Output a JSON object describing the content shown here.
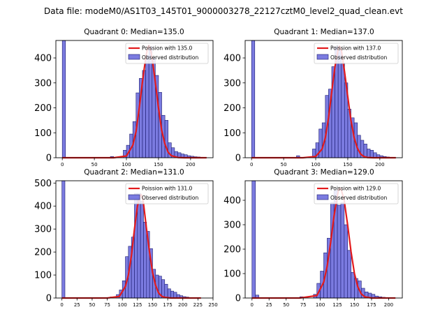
{
  "figure_title": "Data file: modeM0/AS1T03_145T01_9000003278_22127cztM0_level2_quad_clean.evt",
  "colors": {
    "bar_fill": "#7b7be0",
    "bar_edge": "#1a1a6e",
    "line": "#e31a1c",
    "axes": "#000000",
    "legend_border": "#cccccc"
  },
  "legend": {
    "line_prefix": "Poission with ",
    "bars": "Observed distribution"
  },
  "chart_data": [
    {
      "type": "bar",
      "title": "Quadrant 0: Median=135.0",
      "median": 135.0,
      "median_label": "135.0",
      "xlim": [
        -10,
        235
      ],
      "ylim": [
        0,
        470
      ],
      "xticks": [
        0,
        50,
        100,
        150,
        200
      ],
      "yticks": [
        0,
        100,
        200,
        300,
        400
      ],
      "xticklabels": [
        "0",
        "50",
        "100",
        "150",
        "200"
      ],
      "yticklabels": [
        "0",
        "100",
        "200",
        "300",
        "400"
      ],
      "bin_width": 5,
      "bins_left": [
        0,
        75,
        95,
        100,
        105,
        110,
        115,
        120,
        125,
        130,
        135,
        140,
        145,
        150,
        155,
        160,
        165,
        170,
        175,
        180,
        185,
        190,
        195,
        200,
        205,
        210,
        215
      ],
      "counts": [
        470,
        5,
        30,
        50,
        95,
        145,
        260,
        318,
        350,
        410,
        445,
        400,
        330,
        262,
        170,
        150,
        60,
        40,
        25,
        20,
        15,
        12,
        8,
        6,
        4,
        3,
        2
      ],
      "poisson_x": [
        0,
        80,
        100,
        110,
        115,
        120,
        125,
        130,
        133,
        135,
        137,
        140,
        145,
        150,
        155,
        160,
        165,
        170,
        180,
        190,
        205,
        225
      ],
      "poisson_y": [
        0,
        0,
        7,
        50,
        105,
        200,
        305,
        400,
        440,
        450,
        440,
        400,
        305,
        200,
        110,
        55,
        22,
        8,
        1,
        0,
        0,
        0
      ]
    },
    {
      "type": "bar",
      "title": "Quadrant 1: Median=137.0",
      "median": 137.0,
      "median_label": "137.0",
      "xlim": [
        -10,
        235
      ],
      "ylim": [
        0,
        470
      ],
      "xticks": [
        0,
        50,
        100,
        150,
        200
      ],
      "yticks": [
        0,
        100,
        200,
        300,
        400
      ],
      "xticklabels": [
        "0",
        "50",
        "100",
        "150",
        "200"
      ],
      "yticklabels": [
        "0",
        "100",
        "200",
        "300",
        "400"
      ],
      "bin_width": 5,
      "bins_left": [
        0,
        70,
        95,
        100,
        105,
        110,
        115,
        120,
        125,
        130,
        135,
        140,
        145,
        150,
        155,
        160,
        165,
        170,
        175,
        180,
        185,
        190,
        195,
        200,
        205,
        210,
        215
      ],
      "counts": [
        470,
        8,
        35,
        60,
        115,
        140,
        250,
        275,
        365,
        445,
        430,
        380,
        300,
        195,
        160,
        140,
        90,
        70,
        55,
        35,
        30,
        20,
        12,
        8,
        5,
        3,
        2
      ],
      "poisson_x": [
        0,
        80,
        100,
        110,
        115,
        120,
        125,
        130,
        135,
        137,
        140,
        145,
        150,
        155,
        160,
        165,
        170,
        175,
        180,
        190,
        205,
        225
      ],
      "poisson_y": [
        0,
        0,
        5,
        35,
        80,
        160,
        265,
        365,
        435,
        448,
        430,
        345,
        245,
        150,
        80,
        38,
        15,
        5,
        1,
        0,
        0,
        0
      ]
    },
    {
      "type": "bar",
      "title": "Quadrant 2: Median=131.0",
      "median": 131.0,
      "median_label": "131.0",
      "xlim": [
        -10,
        250
      ],
      "ylim": [
        0,
        510
      ],
      "xticks": [
        0,
        25,
        50,
        75,
        100,
        125,
        150,
        175,
        200,
        225,
        250
      ],
      "yticks": [
        0,
        100,
        200,
        300,
        400,
        500
      ],
      "xticklabels": [
        "0",
        "25",
        "50",
        "75",
        "100",
        "125",
        "150",
        "175",
        "200",
        "225",
        "250"
      ],
      "yticklabels": [
        "0",
        "100",
        "200",
        "300",
        "400",
        "500"
      ],
      "bin_width": 5,
      "bins_left": [
        0,
        80,
        90,
        95,
        100,
        105,
        110,
        115,
        120,
        125,
        130,
        135,
        140,
        145,
        150,
        155,
        160,
        165,
        170,
        175,
        180,
        185,
        190,
        195,
        200,
        205,
        210
      ],
      "counts": [
        510,
        5,
        15,
        35,
        75,
        180,
        225,
        265,
        455,
        455,
        420,
        330,
        290,
        215,
        125,
        100,
        95,
        80,
        60,
        40,
        30,
        25,
        15,
        10,
        6,
        4,
        2
      ],
      "poisson_x": [
        0,
        75,
        95,
        105,
        110,
        115,
        120,
        125,
        129,
        131,
        133,
        135,
        140,
        145,
        150,
        155,
        160,
        165,
        170,
        180,
        200,
        230
      ],
      "poisson_y": [
        0,
        0,
        7,
        50,
        100,
        185,
        300,
        400,
        440,
        450,
        440,
        410,
        300,
        200,
        110,
        55,
        22,
        8,
        3,
        0,
        0,
        0
      ]
    },
    {
      "type": "bar",
      "title": "Quadrant 3: Median=129.0",
      "median": 129.0,
      "median_label": "129.0",
      "xlim": [
        -10,
        220
      ],
      "ylim": [
        0,
        480
      ],
      "xticks": [
        0,
        25,
        50,
        75,
        100,
        125,
        150,
        175,
        200
      ],
      "yticks": [
        0,
        100,
        200,
        300,
        400
      ],
      "xticklabels": [
        "0",
        "25",
        "50",
        "75",
        "100",
        "125",
        "150",
        "175",
        "200"
      ],
      "yticklabels": [
        "0",
        "100",
        "200",
        "300",
        "400"
      ],
      "bin_width": 5,
      "bins_left": [
        0,
        5,
        70,
        90,
        95,
        100,
        105,
        110,
        115,
        120,
        125,
        130,
        135,
        140,
        145,
        150,
        155,
        160,
        165,
        170,
        175,
        180,
        185,
        190,
        195
      ],
      "counts": [
        480,
        12,
        5,
        15,
        60,
        110,
        185,
        245,
        390,
        440,
        380,
        390,
        300,
        195,
        105,
        80,
        70,
        40,
        25,
        20,
        15,
        8,
        5,
        3,
        2
      ],
      "poisson_x": [
        0,
        70,
        95,
        105,
        110,
        115,
        120,
        125,
        127,
        129,
        131,
        135,
        140,
        145,
        150,
        155,
        160,
        165,
        175,
        190,
        210
      ],
      "poisson_y": [
        0,
        0,
        10,
        65,
        130,
        225,
        335,
        420,
        445,
        450,
        440,
        400,
        300,
        190,
        100,
        45,
        17,
        5,
        0,
        0,
        0
      ]
    }
  ]
}
